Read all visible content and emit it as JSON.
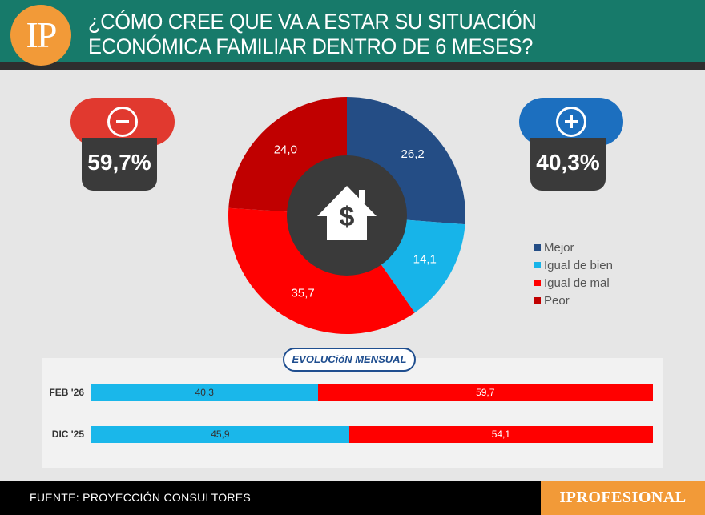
{
  "header": {
    "logo": "IP",
    "title_line1": "¿CÓMO CREE QUE VA A ESTAR SU SITUACIÓN",
    "title_line2": "ECONÓMICA FAMILIAR DENTRO DE 6 MESES?"
  },
  "negative": {
    "value": "59,7%",
    "color": "#e1392f"
  },
  "positive": {
    "value": "40,3%",
    "color": "#1c6fbf"
  },
  "colors": {
    "mejor": "#244d85",
    "igual_bien": "#17b4e9",
    "igual_mal": "#ff0000",
    "peor": "#c00000",
    "center": "#3a3a3a"
  },
  "chart_data": [
    {
      "type": "pie",
      "title": "¿CÓMO CREE QUE VA A ESTAR SU SITUACIÓN ECONÓMICA FAMILIAR DENTRO DE 6 MESES?",
      "categories": [
        "Mejor",
        "Igual de bien",
        "Igual de mal",
        "Peor"
      ],
      "values": [
        26.2,
        14.1,
        35.7,
        24.0
      ],
      "labels": [
        "26,2",
        "14,1",
        "35,7",
        "24,0"
      ],
      "legend_position": "right"
    },
    {
      "type": "bar",
      "stacked": true,
      "orientation": "horizontal",
      "title": "EVOLUCióN MENSUAL",
      "categories": [
        "FEB '26",
        "DIC '25"
      ],
      "series": [
        {
          "name": "Positivo",
          "values": [
            40.3,
            45.9
          ],
          "labels": [
            "40,3",
            "45,9"
          ]
        },
        {
          "name": "Negativo",
          "values": [
            59.7,
            54.1
          ],
          "labels": [
            "59,7",
            "54,1"
          ]
        }
      ]
    }
  ],
  "footer": {
    "source": "FUENTE: PROYECCIÓN CONSULTORES",
    "brand": "IPROFESIONAL"
  }
}
